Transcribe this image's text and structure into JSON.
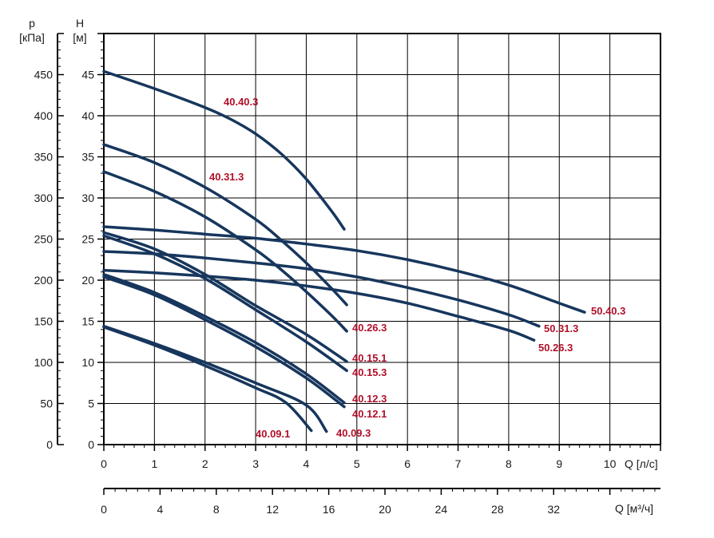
{
  "chart_data": {
    "type": "line",
    "colors": {
      "curve": "#17365d",
      "label": "#b0102a",
      "grid": "#000000",
      "text": "#1a1a1a"
    },
    "grid": true,
    "axes": {
      "left_p": {
        "title_line1": "p",
        "title_line2": "[кПа]",
        "range": [
          0,
          500
        ],
        "ticks": [
          "0",
          "50",
          "100",
          "150",
          "200",
          "250",
          "300",
          "350",
          "400",
          "450"
        ]
      },
      "left_h": {
        "title_line1": "H",
        "title_line2": "[м]",
        "range": [
          0,
          50
        ],
        "ticks": [
          "0",
          "5",
          "10",
          "15",
          "20",
          "25",
          "30",
          "35",
          "40",
          "45"
        ]
      },
      "x_ls": {
        "title": "Q [л/с]",
        "range": [
          0,
          11
        ],
        "ticks": [
          "0",
          "1",
          "2",
          "3",
          "4",
          "5",
          "6",
          "7",
          "8",
          "9",
          "10"
        ]
      },
      "x_m3h": {
        "title": "Q [м³/ч]",
        "range": [
          0,
          39.6
        ],
        "ticks": [
          "0",
          "4",
          "8",
          "12",
          "16",
          "20",
          "24",
          "28",
          "32"
        ]
      }
    },
    "series": [
      {
        "name": "40.40.3",
        "x": [
          0,
          1,
          2,
          2.5,
          3,
          3.5,
          4,
          4.5,
          4.75
        ],
        "y": [
          45.4,
          43.3,
          41,
          39.6,
          37.8,
          35.4,
          32.3,
          28.4,
          26.2
        ]
      },
      {
        "name": "40.31.3",
        "x": [
          0,
          1,
          2,
          3,
          3.5,
          4,
          4.5,
          4.8
        ],
        "y": [
          36.5,
          34.3,
          31.3,
          27.4,
          24.9,
          22.1,
          19,
          17
        ]
      },
      {
        "name": "40.26.3",
        "x": [
          0,
          1,
          2,
          3,
          3.5,
          4,
          4.5,
          4.8
        ],
        "y": [
          33.2,
          30.8,
          27.7,
          23.7,
          21.3,
          18.6,
          15.7,
          13.8
        ]
      },
      {
        "name": "40.15.1",
        "x": [
          0,
          1,
          2,
          3,
          4,
          4.8
        ],
        "y": [
          25.8,
          23.8,
          20.7,
          16.9,
          13.4,
          10.1
        ]
      },
      {
        "name": "40.15.3",
        "x": [
          0,
          1,
          2,
          3,
          4,
          4.8
        ],
        "y": [
          25.4,
          23.2,
          20.2,
          16.4,
          12.5,
          9
        ]
      },
      {
        "name": "40.12.3",
        "x": [
          0,
          1,
          2,
          3,
          4,
          4.75
        ],
        "y": [
          20.7,
          18.5,
          15.6,
          12.4,
          8.6,
          5.1
        ]
      },
      {
        "name": "40.12.1",
        "x": [
          0,
          1,
          2,
          3,
          4,
          4.75
        ],
        "y": [
          20.4,
          18.2,
          15.2,
          11.9,
          8.1,
          4.6
        ]
      },
      {
        "name": "40.09.3",
        "x": [
          0,
          1,
          2,
          3,
          4,
          4.4
        ],
        "y": [
          14.4,
          12.3,
          10,
          7.5,
          4.8,
          1.6
        ]
      },
      {
        "name": "40.09.1",
        "x": [
          0,
          1,
          2,
          3,
          3.6,
          4.1
        ],
        "y": [
          14.3,
          12.1,
          9.6,
          6.9,
          5.1,
          1.7
        ]
      },
      {
        "name": "50.40.3",
        "x": [
          0,
          1,
          2,
          3,
          4,
          5,
          6,
          7,
          8,
          9,
          9.5
        ],
        "y": [
          26.5,
          26.1,
          25.6,
          25.1,
          24.4,
          23.6,
          22.5,
          21.1,
          19.4,
          17.2,
          16.1
        ]
      },
      {
        "name": "50.31.3",
        "x": [
          0,
          1,
          2,
          3,
          4,
          5,
          6,
          7,
          8,
          8.6
        ],
        "y": [
          23.5,
          23.2,
          22.7,
          22.1,
          21.4,
          20.4,
          19.1,
          17.6,
          15.8,
          14.4
        ]
      },
      {
        "name": "50.26.3",
        "x": [
          0,
          1,
          2,
          3,
          4,
          5,
          6,
          7,
          8,
          8.5
        ],
        "y": [
          21.2,
          20.9,
          20.5,
          20,
          19.3,
          18.4,
          17.2,
          15.6,
          13.9,
          12.7
        ]
      }
    ]
  }
}
